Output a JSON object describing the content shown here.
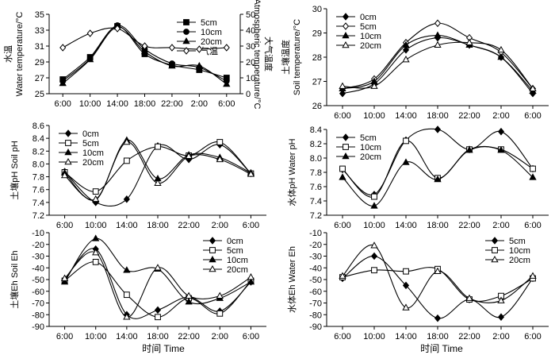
{
  "x_title": "时间 Time",
  "chart_data": [
    {
      "id": "water-temp",
      "type": "line",
      "ylabel": [
        "水温",
        "Water temperature/°C"
      ],
      "y2label": [
        "大气温度",
        "Atmospheric temperature/°C"
      ],
      "x": [
        "6:00",
        "10:00",
        "14:00",
        "18:00",
        "22:00",
        "2:00",
        "6:00"
      ],
      "ylim": [
        25,
        35
      ],
      "yticks": [
        25,
        27,
        29,
        31,
        33,
        35
      ],
      "y2lim": [
        0,
        50
      ],
      "y2ticks": [
        0,
        10,
        20,
        30,
        40,
        50
      ],
      "legend": "top-right",
      "marker_style": "open",
      "series": [
        {
          "name": "5cm",
          "marker": "square-filled",
          "values": [
            26.8,
            29.6,
            33.5,
            30.0,
            28.6,
            28.0,
            27.0
          ]
        },
        {
          "name": "10cm",
          "marker": "circle-filled",
          "values": [
            26.6,
            29.4,
            33.6,
            30.6,
            28.8,
            28.3,
            26.6
          ]
        },
        {
          "name": "20cm",
          "marker": "triangle-filled",
          "values": [
            26.3,
            29.3,
            33.4,
            30.3,
            28.5,
            28.5,
            26.2
          ]
        },
        {
          "name": "气温",
          "marker": "diamond-open",
          "axis": "right",
          "values": [
            29,
            38,
            41,
            30,
            29,
            28,
            29
          ]
        }
      ]
    },
    {
      "id": "soil-temp",
      "type": "line",
      "ylabel": [
        "土壤温度",
        "Soil temperature/°C"
      ],
      "x": [
        "6:00",
        "10:00",
        "14:00",
        "18:00",
        "22:00",
        "2:00",
        "6:00"
      ],
      "ylim": [
        26,
        30
      ],
      "yticks": [
        26,
        27,
        28,
        29,
        30
      ],
      "legend": "top-left",
      "series": [
        {
          "name": "0cm",
          "marker": "diamond-filled",
          "values": [
            26.5,
            26.9,
            28.3,
            28.8,
            28.5,
            28.0,
            26.5
          ]
        },
        {
          "name": "5cm",
          "marker": "diamond-open",
          "values": [
            26.7,
            27.1,
            28.6,
            29.4,
            28.8,
            28.2,
            26.7
          ]
        },
        {
          "name": "10cm",
          "marker": "triangle-filled",
          "values": [
            26.7,
            27.0,
            28.5,
            28.9,
            28.5,
            28.0,
            26.6
          ]
        },
        {
          "name": "20cm",
          "marker": "triangle-open",
          "values": [
            26.8,
            26.8,
            27.9,
            28.5,
            28.6,
            28.3,
            26.7
          ]
        }
      ]
    },
    {
      "id": "soil-ph",
      "type": "line",
      "ylabel": [
        "土壤pH Soil pH"
      ],
      "x": [
        "6:00",
        "10:00",
        "14:00",
        "18:00",
        "22:00",
        "2:00",
        "6:00"
      ],
      "ylim": [
        7.2,
        8.6
      ],
      "yticks": [
        7.2,
        7.4,
        7.6,
        7.8,
        8.0,
        8.2,
        8.4,
        8.6
      ],
      "legend": "top-left",
      "series": [
        {
          "name": "0cm",
          "marker": "diamond-filled",
          "values": [
            7.88,
            7.4,
            7.45,
            8.28,
            8.07,
            8.3,
            7.85
          ]
        },
        {
          "name": "5cm",
          "marker": "square-open",
          "values": [
            7.87,
            7.57,
            8.05,
            8.27,
            8.13,
            8.34,
            7.85
          ]
        },
        {
          "name": "10cm",
          "marker": "triangle-filled",
          "values": [
            7.86,
            7.44,
            8.37,
            7.77,
            8.14,
            8.1,
            7.86
          ]
        },
        {
          "name": "20cm",
          "marker": "triangle-open",
          "values": [
            7.82,
            7.45,
            8.34,
            7.7,
            8.12,
            8.07,
            7.84
          ]
        }
      ]
    },
    {
      "id": "water-ph",
      "type": "line",
      "ylabel": [
        "水体pH Water pH"
      ],
      "x": [
        "6:00",
        "10:00",
        "14:00",
        "18:00",
        "22:00",
        "2:00",
        "6:00"
      ],
      "ylim": [
        7.2,
        8.4
      ],
      "yticks": [
        7.2,
        7.4,
        7.6,
        7.8,
        8.0,
        8.2,
        8.4
      ],
      "legend": "top-left",
      "series": [
        {
          "name": "5cm",
          "marker": "diamond-filled",
          "values": [
            7.84,
            7.49,
            8.25,
            8.4,
            8.12,
            8.37,
            7.85
          ]
        },
        {
          "name": "10cm",
          "marker": "square-open",
          "values": [
            7.85,
            7.46,
            8.24,
            7.72,
            8.12,
            8.12,
            7.85
          ]
        },
        {
          "name": "20cm",
          "marker": "triangle-filled",
          "values": [
            7.73,
            7.33,
            7.94,
            7.7,
            8.11,
            8.11,
            7.73
          ]
        }
      ]
    },
    {
      "id": "soil-eh",
      "type": "line",
      "ylabel": [
        "土壤Eh Soil Eh"
      ],
      "x": [
        "6:00",
        "10:00",
        "14:00",
        "18:00",
        "22:00",
        "2:00",
        "6:00"
      ],
      "ylim": [
        -90,
        -10
      ],
      "yticks": [
        -90,
        -80,
        -70,
        -60,
        -50,
        -40,
        -30,
        -20,
        -10
      ],
      "legend": "top-right",
      "series": [
        {
          "name": "0cm",
          "marker": "diamond-filled",
          "values": [
            -50,
            -24,
            -80,
            -76,
            -65,
            -77,
            -52
          ]
        },
        {
          "name": "5cm",
          "marker": "square-open",
          "values": [
            -51,
            -35,
            -63,
            -82,
            -66,
            -79,
            -51
          ]
        },
        {
          "name": "10cm",
          "marker": "triangle-filled",
          "values": [
            -52,
            -15,
            -42,
            -41,
            -69,
            -66,
            -52
          ]
        },
        {
          "name": "20cm",
          "marker": "triangle-open",
          "values": [
            -49,
            -27,
            -82,
            -40,
            -64,
            -64,
            -48
          ]
        }
      ]
    },
    {
      "id": "water-eh",
      "type": "line",
      "ylabel": [
        "水体Eh Water Eh"
      ],
      "x": [
        "6:00",
        "10:00",
        "14:00",
        "18:00",
        "22:00",
        "2:00",
        "6:00"
      ],
      "ylim": [
        -90,
        -10
      ],
      "yticks": [
        -90,
        -80,
        -70,
        -60,
        -50,
        -40,
        -30,
        -20,
        -10
      ],
      "legend": "top-right",
      "series": [
        {
          "name": "5cm",
          "marker": "diamond-filled",
          "values": [
            -49,
            -30,
            -55,
            -83,
            -67,
            -82,
            -49
          ]
        },
        {
          "name": "10cm",
          "marker": "square-open",
          "values": [
            -48,
            -42,
            -43,
            -41,
            -67,
            -64,
            -49
          ]
        },
        {
          "name": "20cm",
          "marker": "triangle-open",
          "values": [
            -47,
            -21,
            -74,
            -43,
            -66,
            -68,
            -47
          ]
        }
      ]
    }
  ]
}
